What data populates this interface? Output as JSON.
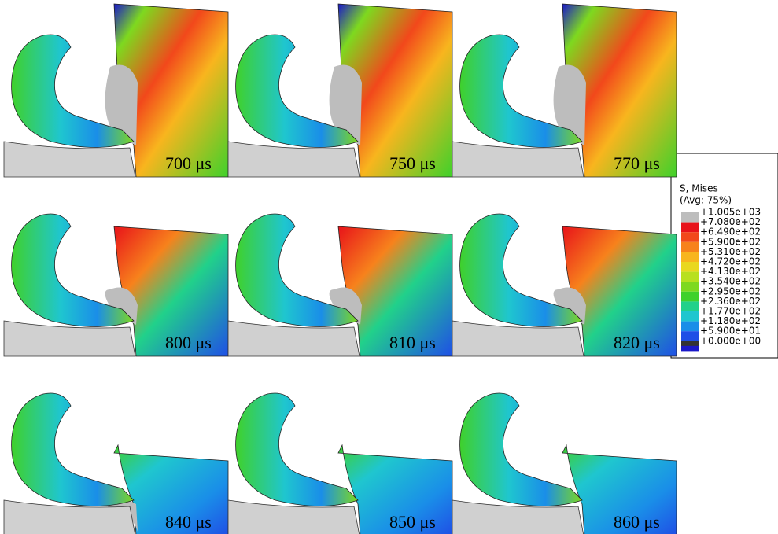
{
  "panels": [
    "700 μs",
    "750 μs",
    "770 μs",
    "800 μs",
    "810 μs",
    "820 μs",
    "840 μs",
    "850 μs",
    "860 μs"
  ],
  "legend": {
    "title": "S, Mises",
    "subtitle": "(Avg: 75%)",
    "levels": [
      "+1.005e+03",
      "+7.080e+02",
      "+6.490e+02",
      "+5.900e+02",
      "+5.310e+02",
      "+4.720e+02",
      "+4.130e+02",
      "+3.540e+02",
      "+2.950e+02",
      "+2.360e+02",
      "+1.770e+02",
      "+1.180e+02",
      "+5.900e+01",
      "+0.000e+00"
    ],
    "band_colors": [
      "#bdbdbd",
      "#e8121a",
      "#f2481b",
      "#f7821c",
      "#f8b51e",
      "#e9d81f",
      "#b8e01f",
      "#7ed91f",
      "#3fd12b",
      "#21d18a",
      "#1fc6cf",
      "#1a8ee8",
      "#1f4fe6",
      "#1a18c9"
    ]
  }
}
